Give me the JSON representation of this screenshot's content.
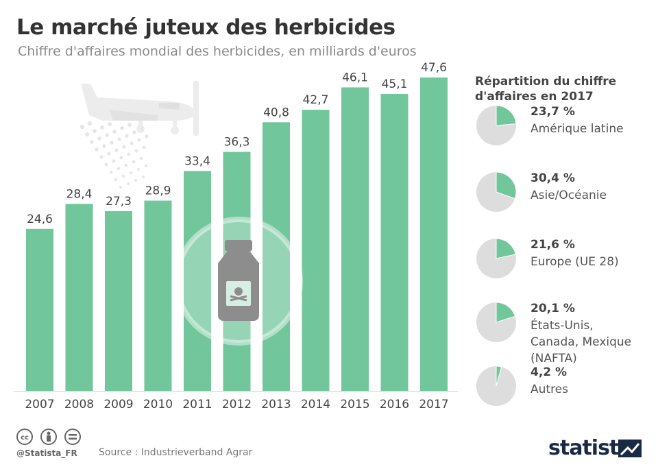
{
  "header": {
    "title": "Le marché juteux des herbicides",
    "subtitle": "Chiffre d'affaires mondial des herbicides, en milliards d'euros"
  },
  "chart_data": {
    "type": "bar",
    "categories": [
      "2007",
      "2008",
      "2009",
      "2010",
      "2011",
      "2012",
      "2013",
      "2014",
      "2015",
      "2016",
      "2017"
    ],
    "values": [
      24.6,
      28.4,
      27.3,
      28.9,
      33.4,
      36.3,
      40.8,
      42.7,
      46.1,
      45.1,
      47.6
    ],
    "value_labels": [
      "24,6",
      "28,4",
      "27,3",
      "28,9",
      "33,4",
      "36,3",
      "40,8",
      "42,7",
      "46,1",
      "45,1",
      "47,6"
    ],
    "title": "Chiffre d'affaires mondial des herbicides, en milliards d'euros",
    "xlabel": "",
    "ylabel": "",
    "ylim": [
      0,
      50
    ],
    "grid": false,
    "bar_color": "#72c69b"
  },
  "breakdown": {
    "title": "Répartition du chiffre d'affaires en 2017",
    "items": [
      {
        "pct": "23,7 %",
        "value": 23.7,
        "name": "Amérique latine"
      },
      {
        "pct": "30,4 %",
        "value": 30.4,
        "name": "Asie/Océanie"
      },
      {
        "pct": "21,6 %",
        "value": 21.6,
        "name": "Europe (UE 28)"
      },
      {
        "pct": "20,1 %",
        "value": 20.1,
        "name": "États-Unis,\nCanada, Mexique\n(NAFTA)"
      },
      {
        "pct": "4,2 %",
        "value": 4.2,
        "name": "Autres"
      }
    ],
    "slice_color": "#72c69b",
    "rest_color": "#dddddd"
  },
  "footer": {
    "handle": "@Statista_FR",
    "source": "Source : Industrieverband Agrar",
    "brand": "statista",
    "icons": [
      "cc-icon",
      "by-person-icon",
      "nd-equals-icon"
    ]
  }
}
